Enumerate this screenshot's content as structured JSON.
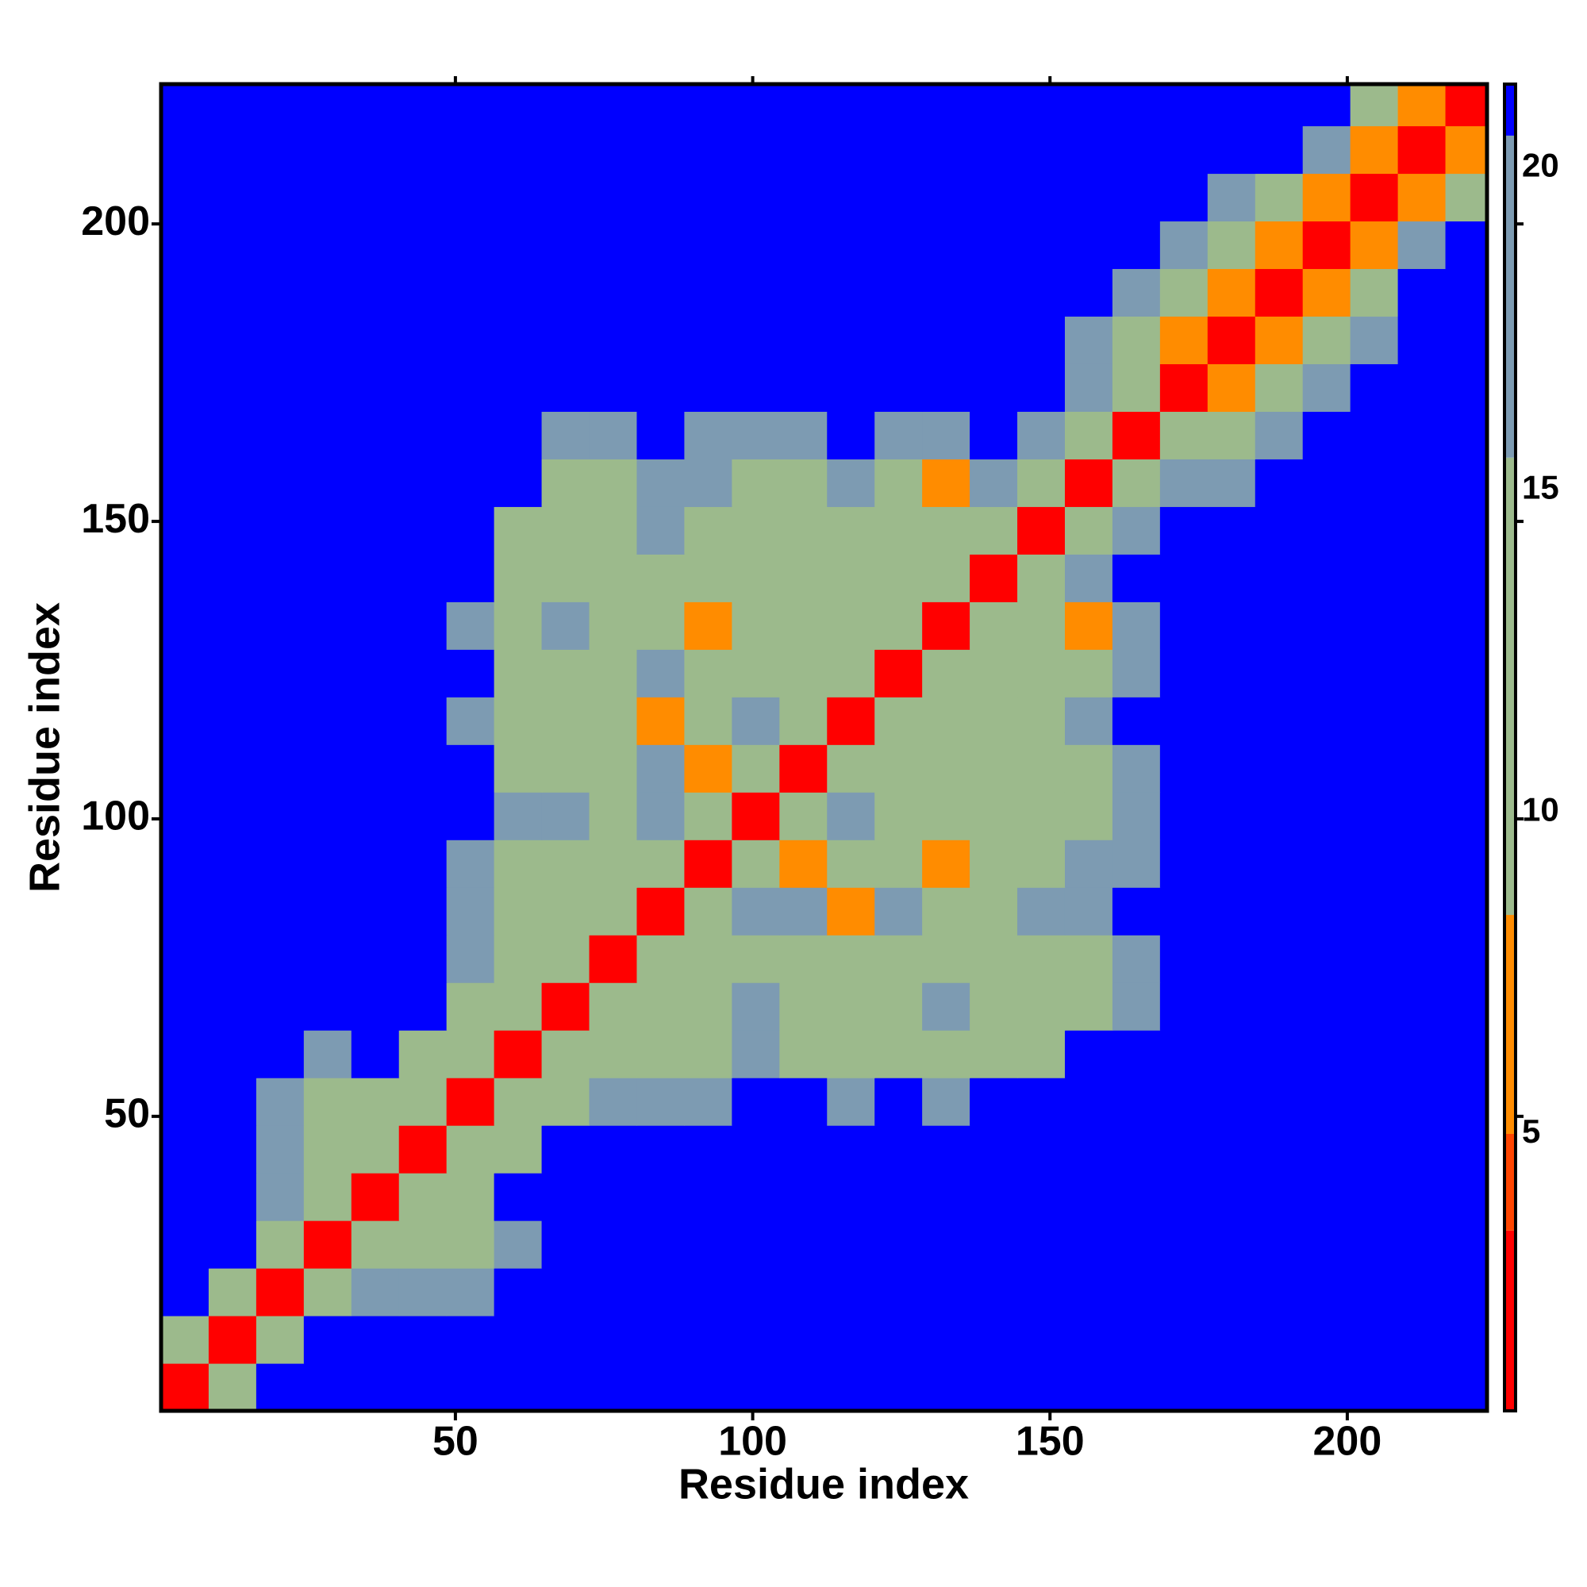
{
  "chart_data": {
    "type": "heatmap",
    "x_label": "Residue index",
    "y_label": "Residue index",
    "xlim": [
      0.5,
      223.5
    ],
    "ylim": [
      0.5,
      223.5
    ],
    "xticks": [
      50,
      100,
      150,
      200
    ],
    "yticks": [
      50,
      100,
      150,
      200
    ],
    "zlim": [
      0.7,
      21.3
    ],
    "zticks": [
      5,
      10,
      15,
      20
    ],
    "color_steps": [
      {
        "from": 0.7,
        "color": "#ff0000"
      },
      {
        "from": 3.5,
        "color": "#ff4500"
      },
      {
        "from": 5,
        "color": "#ff8c00"
      },
      {
        "from": 8.4,
        "color": "#9cba8c"
      },
      {
        "from": 15.5,
        "color": "#7d9bb2"
      },
      {
        "from": 20.5,
        "color": "#0000ff"
      }
    ],
    "x": [
      4.5,
      12.5,
      20.5,
      28.5,
      36.5,
      44.5,
      52.5,
      60.5,
      68.5,
      76.5,
      84.5,
      92.5,
      100.5,
      108.5,
      116.5,
      124.5,
      132.5,
      140.5,
      148.5,
      156.5,
      164.5,
      172.5,
      180.5,
      188.5,
      196.5,
      204.5,
      212.5,
      220.5
    ],
    "y": [
      4.5,
      12.5,
      20.5,
      28.5,
      36.5,
      44.5,
      52.5,
      60.5,
      68.5,
      76.5,
      84.5,
      92.5,
      100.5,
      108.5,
      116.5,
      124.5,
      132.5,
      140.5,
      148.5,
      156.5,
      164.5,
      172.5,
      180.5,
      188.5,
      196.5,
      204.5,
      212.5,
      220.5
    ],
    "z": [
      [
        3,
        12,
        21,
        21,
        21,
        21,
        21,
        21,
        21,
        21,
        21,
        21,
        21,
        21,
        21,
        21,
        21,
        21,
        21,
        21,
        21,
        21,
        21,
        21,
        21,
        21,
        21,
        21
      ],
      [
        12,
        3,
        12,
        21,
        21,
        21,
        21,
        21,
        21,
        21,
        21,
        21,
        21,
        21,
        21,
        21,
        21,
        21,
        21,
        21,
        21,
        21,
        21,
        21,
        21,
        21,
        21,
        21
      ],
      [
        21,
        12,
        3,
        12,
        20,
        19,
        19,
        21,
        21,
        21,
        21,
        21,
        21,
        21,
        21,
        21,
        21,
        21,
        21,
        21,
        21,
        21,
        21,
        21,
        21,
        21,
        21,
        21
      ],
      [
        21,
        21,
        12,
        3,
        12,
        15,
        9,
        19,
        21,
        21,
        21,
        21,
        21,
        21,
        21,
        21,
        21,
        21,
        21,
        21,
        21,
        21,
        21,
        21,
        21,
        21,
        21,
        21
      ],
      [
        21,
        21,
        20,
        12,
        3,
        11,
        14,
        21,
        21,
        21,
        21,
        21,
        21,
        21,
        21,
        21,
        21,
        21,
        21,
        21,
        21,
        21,
        21,
        21,
        21,
        21,
        21,
        21
      ],
      [
        21,
        21,
        19,
        15,
        11,
        3,
        11,
        12,
        21,
        21,
        21,
        21,
        21,
        21,
        21,
        21,
        21,
        21,
        21,
        21,
        21,
        21,
        21,
        21,
        21,
        21,
        21,
        21
      ],
      [
        21,
        21,
        19,
        9,
        14,
        11,
        3,
        9,
        13,
        20,
        18,
        17,
        21,
        21,
        18,
        21,
        16,
        21,
        21,
        21,
        21,
        21,
        21,
        21,
        21,
        21,
        21,
        21
      ],
      [
        21,
        21,
        21,
        19,
        21,
        12,
        9,
        3,
        10,
        13,
        9,
        14,
        19,
        15,
        13,
        12,
        12,
        9,
        14,
        21,
        21,
        21,
        21,
        21,
        21,
        21,
        21,
        21
      ],
      [
        21,
        21,
        21,
        21,
        21,
        21,
        13,
        10,
        3,
        9,
        10,
        13,
        16,
        13,
        12,
        12,
        16,
        9,
        10,
        13,
        17,
        21,
        21,
        21,
        21,
        21,
        21,
        21
      ],
      [
        21,
        21,
        21,
        21,
        21,
        21,
        20,
        13,
        9,
        3,
        9,
        12,
        13,
        12,
        12,
        9,
        14,
        12,
        12,
        12,
        16,
        21,
        21,
        21,
        21,
        21,
        21,
        21
      ],
      [
        21,
        21,
        21,
        21,
        21,
        21,
        18,
        9,
        10,
        9,
        3,
        11,
        16,
        16,
        8,
        17,
        11,
        13,
        16,
        17,
        21,
        21,
        21,
        21,
        21,
        21,
        21,
        21
      ],
      [
        21,
        21,
        21,
        21,
        21,
        21,
        17,
        14,
        13,
        12,
        11,
        3,
        10,
        8,
        9,
        12,
        8,
        10,
        13,
        18,
        19,
        21,
        21,
        21,
        21,
        21,
        21,
        21
      ],
      [
        21,
        21,
        21,
        21,
        21,
        21,
        21,
        19,
        16,
        13,
        16,
        10,
        3,
        10,
        16,
        11,
        10,
        13,
        14,
        14,
        18,
        21,
        21,
        21,
        21,
        21,
        21,
        21
      ],
      [
        21,
        21,
        21,
        21,
        21,
        21,
        21,
        15,
        13,
        12,
        16,
        8,
        10,
        3,
        11,
        12,
        13,
        13,
        14,
        15,
        19,
        21,
        21,
        21,
        21,
        21,
        21,
        21
      ],
      [
        21,
        21,
        21,
        21,
        21,
        21,
        18,
        13,
        12,
        12,
        8,
        9,
        16,
        11,
        3,
        15,
        13,
        14,
        15,
        18,
        21,
        21,
        21,
        21,
        21,
        21,
        21,
        21
      ],
      [
        21,
        21,
        21,
        21,
        21,
        21,
        21,
        12,
        12,
        9,
        17,
        12,
        11,
        12,
        15,
        3,
        9,
        13,
        12,
        13,
        16,
        21,
        21,
        21,
        21,
        21,
        21,
        21
      ],
      [
        21,
        21,
        21,
        21,
        21,
        21,
        16,
        12,
        16,
        14,
        11,
        8,
        10,
        13,
        13,
        9,
        3,
        10,
        11,
        7,
        17,
        21,
        21,
        21,
        21,
        21,
        21,
        21
      ],
      [
        21,
        21,
        21,
        21,
        21,
        21,
        21,
        9,
        9,
        12,
        13,
        10,
        13,
        13,
        14,
        13,
        10,
        3,
        9,
        16,
        21,
        21,
        21,
        21,
        21,
        21,
        21,
        21
      ],
      [
        21,
        21,
        21,
        21,
        21,
        21,
        21,
        14,
        10,
        12,
        16,
        13,
        14,
        14,
        15,
        12,
        11,
        9,
        3,
        13,
        18,
        21,
        21,
        21,
        21,
        21,
        21,
        21
      ],
      [
        21,
        21,
        21,
        21,
        21,
        21,
        21,
        21,
        13,
        12,
        17,
        18,
        14,
        15,
        18,
        13,
        7,
        16,
        13,
        3,
        12,
        17,
        20,
        21,
        21,
        21,
        21,
        21
      ],
      [
        21,
        21,
        21,
        21,
        21,
        21,
        21,
        21,
        17,
        16,
        21,
        19,
        18,
        19,
        21,
        16,
        17,
        21,
        18,
        12,
        3,
        9,
        14,
        19,
        21,
        21,
        21,
        21
      ],
      [
        21,
        21,
        21,
        21,
        21,
        21,
        21,
        21,
        21,
        21,
        21,
        21,
        21,
        21,
        21,
        21,
        21,
        21,
        21,
        17,
        9,
        3,
        8,
        14,
        19,
        21,
        21,
        21
      ],
      [
        21,
        21,
        21,
        21,
        21,
        21,
        21,
        21,
        21,
        21,
        21,
        21,
        21,
        21,
        21,
        21,
        21,
        21,
        21,
        20,
        14,
        8,
        3,
        8,
        14,
        20,
        21,
        21
      ],
      [
        21,
        21,
        21,
        21,
        21,
        21,
        21,
        21,
        21,
        21,
        21,
        21,
        21,
        21,
        21,
        21,
        21,
        21,
        21,
        21,
        19,
        14,
        8,
        3,
        8,
        15,
        21,
        21
      ],
      [
        21,
        21,
        21,
        21,
        21,
        21,
        21,
        21,
        21,
        21,
        21,
        21,
        21,
        21,
        21,
        21,
        21,
        21,
        21,
        21,
        21,
        19,
        14,
        8,
        3,
        8,
        17,
        21
      ],
      [
        21,
        21,
        21,
        21,
        21,
        21,
        21,
        21,
        21,
        21,
        21,
        21,
        21,
        21,
        21,
        21,
        21,
        21,
        21,
        21,
        21,
        21,
        20,
        15,
        8,
        3,
        8,
        15
      ],
      [
        21,
        21,
        21,
        21,
        21,
        21,
        21,
        21,
        21,
        21,
        21,
        21,
        21,
        21,
        21,
        21,
        21,
        21,
        21,
        21,
        21,
        21,
        21,
        21,
        17,
        8,
        3,
        8
      ],
      [
        21,
        21,
        21,
        21,
        21,
        21,
        21,
        21,
        21,
        21,
        21,
        21,
        21,
        21,
        21,
        21,
        21,
        21,
        21,
        21,
        21,
        21,
        21,
        21,
        21,
        15,
        8,
        3
      ]
    ]
  }
}
